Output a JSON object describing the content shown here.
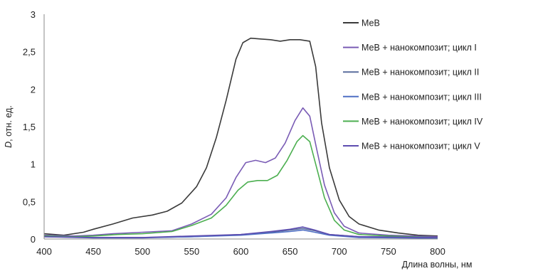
{
  "chart_data": {
    "type": "line",
    "xlabel": "Длина волны, нм",
    "ylabel_italic": "D",
    "ylabel_rest": ", отн. ед.",
    "xlim": [
      400,
      800
    ],
    "ylim": [
      0,
      3
    ],
    "x_ticks": [
      400,
      450,
      500,
      550,
      600,
      650,
      700,
      750,
      800
    ],
    "y_ticks": [
      {
        "value": 0,
        "label": "0"
      },
      {
        "value": 0.5,
        "label": "0,5"
      },
      {
        "value": 1,
        "label": "1"
      },
      {
        "value": 1.5,
        "label": "1,5"
      },
      {
        "value": 2,
        "label": "2"
      },
      {
        "value": 2.5,
        "label": "2,5"
      },
      {
        "value": 3,
        "label": "3"
      }
    ],
    "grid": false,
    "legend_position": "right",
    "series": [
      {
        "name": "МеВ",
        "color": "#3a3a3a",
        "points": [
          [
            400,
            0.07
          ],
          [
            420,
            0.05
          ],
          [
            440,
            0.09
          ],
          [
            450,
            0.13
          ],
          [
            470,
            0.2
          ],
          [
            490,
            0.28
          ],
          [
            510,
            0.32
          ],
          [
            525,
            0.37
          ],
          [
            540,
            0.48
          ],
          [
            555,
            0.7
          ],
          [
            565,
            0.95
          ],
          [
            575,
            1.35
          ],
          [
            585,
            1.85
          ],
          [
            595,
            2.4
          ],
          [
            602,
            2.62
          ],
          [
            610,
            2.68
          ],
          [
            620,
            2.67
          ],
          [
            630,
            2.66
          ],
          [
            640,
            2.64
          ],
          [
            650,
            2.66
          ],
          [
            660,
            2.66
          ],
          [
            670,
            2.64
          ],
          [
            676,
            2.3
          ],
          [
            682,
            1.55
          ],
          [
            690,
            0.95
          ],
          [
            700,
            0.52
          ],
          [
            710,
            0.3
          ],
          [
            720,
            0.2
          ],
          [
            740,
            0.12
          ],
          [
            760,
            0.08
          ],
          [
            780,
            0.05
          ],
          [
            800,
            0.04
          ]
        ]
      },
      {
        "name": "МеВ + нанокомпозит; цикл I",
        "color": "#7a5cb5",
        "points": [
          [
            400,
            0.05
          ],
          [
            430,
            0.04
          ],
          [
            450,
            0.05
          ],
          [
            470,
            0.07
          ],
          [
            500,
            0.09
          ],
          [
            530,
            0.11
          ],
          [
            550,
            0.2
          ],
          [
            570,
            0.33
          ],
          [
            585,
            0.55
          ],
          [
            595,
            0.82
          ],
          [
            605,
            1.02
          ],
          [
            615,
            1.05
          ],
          [
            625,
            1.02
          ],
          [
            635,
            1.08
          ],
          [
            645,
            1.28
          ],
          [
            655,
            1.58
          ],
          [
            663,
            1.75
          ],
          [
            670,
            1.64
          ],
          [
            677,
            1.2
          ],
          [
            685,
            0.72
          ],
          [
            695,
            0.35
          ],
          [
            705,
            0.17
          ],
          [
            720,
            0.08
          ],
          [
            750,
            0.05
          ],
          [
            800,
            0.03
          ]
        ]
      },
      {
        "name": "МеВ + нанокомпозит; цикл II",
        "color": "#5b6e9e",
        "points": [
          [
            400,
            0.04
          ],
          [
            450,
            0.02
          ],
          [
            500,
            0.02
          ],
          [
            550,
            0.03
          ],
          [
            600,
            0.06
          ],
          [
            630,
            0.09
          ],
          [
            650,
            0.12
          ],
          [
            663,
            0.14
          ],
          [
            675,
            0.11
          ],
          [
            690,
            0.06
          ],
          [
            720,
            0.03
          ],
          [
            800,
            0.02
          ]
        ]
      },
      {
        "name": "МеВ + нанокомпозит; цикл III",
        "color": "#4f6fc4",
        "points": [
          [
            400,
            0.03
          ],
          [
            450,
            0.015
          ],
          [
            500,
            0.015
          ],
          [
            550,
            0.03
          ],
          [
            600,
            0.05
          ],
          [
            630,
            0.08
          ],
          [
            650,
            0.1
          ],
          [
            663,
            0.12
          ],
          [
            675,
            0.09
          ],
          [
            690,
            0.05
          ],
          [
            720,
            0.02
          ],
          [
            800,
            0.01
          ]
        ]
      },
      {
        "name": "МеВ + нанокомпозит; цикл IV",
        "color": "#4caf50",
        "points": [
          [
            400,
            0.04
          ],
          [
            430,
            0.03
          ],
          [
            450,
            0.04
          ],
          [
            475,
            0.06
          ],
          [
            500,
            0.07
          ],
          [
            530,
            0.1
          ],
          [
            550,
            0.18
          ],
          [
            570,
            0.28
          ],
          [
            585,
            0.45
          ],
          [
            597,
            0.65
          ],
          [
            607,
            0.76
          ],
          [
            617,
            0.78
          ],
          [
            627,
            0.78
          ],
          [
            637,
            0.85
          ],
          [
            647,
            1.05
          ],
          [
            657,
            1.3
          ],
          [
            663,
            1.38
          ],
          [
            670,
            1.3
          ],
          [
            677,
            0.95
          ],
          [
            685,
            0.55
          ],
          [
            695,
            0.25
          ],
          [
            705,
            0.12
          ],
          [
            720,
            0.06
          ],
          [
            750,
            0.04
          ],
          [
            800,
            0.02
          ]
        ]
      },
      {
        "name": "МеВ + нанокомпозит; цикл V",
        "color": "#5e4db0",
        "points": [
          [
            400,
            0.03
          ],
          [
            450,
            0.02
          ],
          [
            500,
            0.02
          ],
          [
            550,
            0.04
          ],
          [
            600,
            0.06
          ],
          [
            630,
            0.1
          ],
          [
            650,
            0.13
          ],
          [
            663,
            0.16
          ],
          [
            675,
            0.12
          ],
          [
            690,
            0.06
          ],
          [
            720,
            0.03
          ],
          [
            800,
            0.02
          ]
        ]
      }
    ]
  }
}
